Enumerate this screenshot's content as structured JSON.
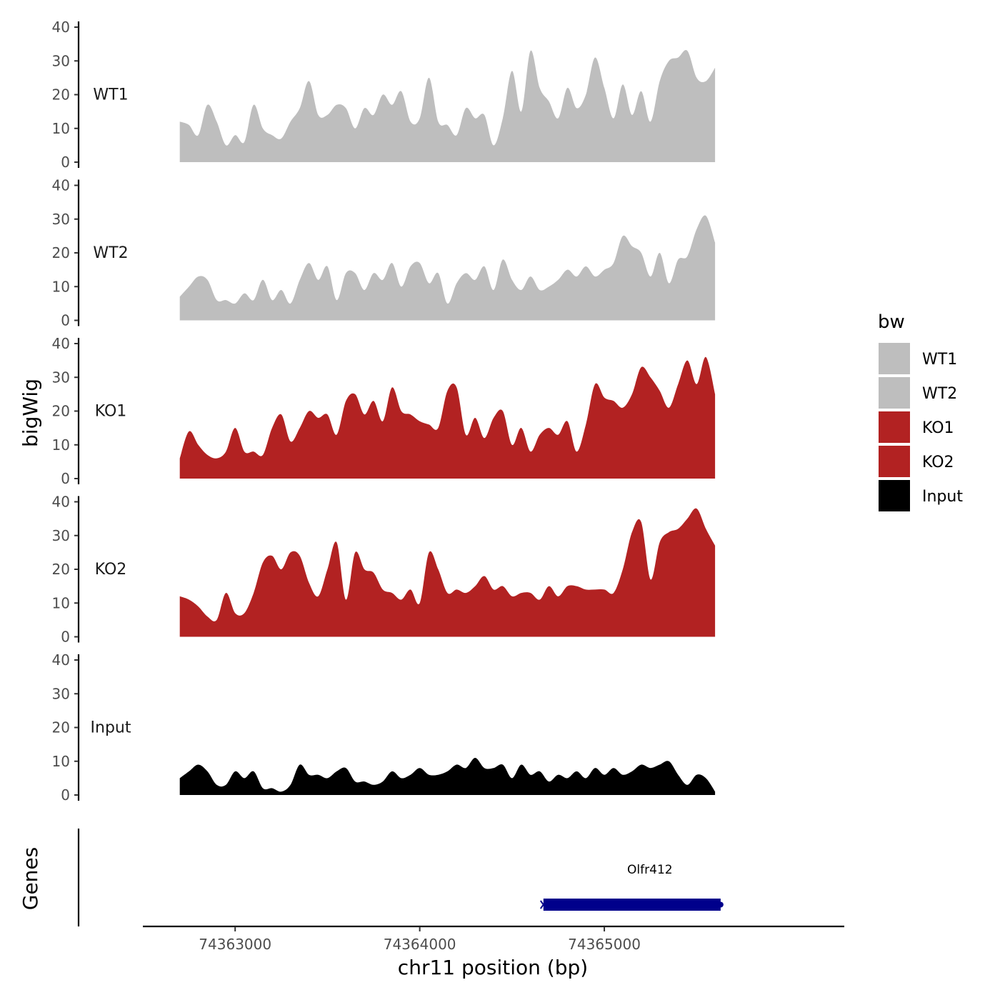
{
  "chart_data": {
    "type": "area",
    "title": "",
    "xlabel": "chr11 position (bp)",
    "ylabel": "bigWig",
    "xlim": [
      74362500,
      74366300
    ],
    "ylim": [
      0,
      40
    ],
    "xticks": [
      74363000,
      74364000,
      74365000
    ],
    "xtick_labels": [
      "74363000",
      "74364000",
      "74365000"
    ],
    "yticks": [
      0,
      10,
      20,
      30,
      40
    ],
    "ytick_labels": [
      "0",
      "10",
      "20",
      "30",
      "40"
    ],
    "grid": false,
    "legend": {
      "title": "bw",
      "placement": "right",
      "entries": [
        {
          "label": "WT1",
          "color": "#bebebe"
        },
        {
          "label": "WT2",
          "color": "#bebebe"
        },
        {
          "label": "KO1",
          "color": "#b22222"
        },
        {
          "label": "KO2",
          "color": "#b22222"
        },
        {
          "label": "Input",
          "color": "#000000"
        }
      ]
    },
    "series": [
      {
        "name": "WT1",
        "color": "#bebebe",
        "x": [
          74362700,
          74362750,
          74362800,
          74362850,
          74362900,
          74362950,
          74363000,
          74363050,
          74363100,
          74363150,
          74363200,
          74363250,
          74363300,
          74363350,
          74363400,
          74363450,
          74363500,
          74363550,
          74363600,
          74363650,
          74363700,
          74363750,
          74363800,
          74363850,
          74363900,
          74363950,
          74364000,
          74364050,
          74364100,
          74364150,
          74364200,
          74364250,
          74364300,
          74364350,
          74364400,
          74364450,
          74364500,
          74364550,
          74364600,
          74364650,
          74364700,
          74364750,
          74364800,
          74364850,
          74364900,
          74364950,
          74365000,
          74365050,
          74365100,
          74365150,
          74365200,
          74365250,
          74365300,
          74365350,
          74365400,
          74365450,
          74365500,
          74365550,
          74365600
        ],
        "values": [
          12,
          11,
          8,
          17,
          12,
          5,
          8,
          6,
          17,
          10,
          8,
          7,
          12,
          16,
          24,
          14,
          14,
          17,
          16,
          10,
          16,
          14,
          20,
          17,
          21,
          12,
          13,
          25,
          12,
          11,
          8,
          16,
          13,
          14,
          5,
          13,
          27,
          15,
          33,
          22,
          18,
          13,
          22,
          16,
          20,
          31,
          22,
          13,
          23,
          14,
          21,
          12,
          24,
          30,
          31,
          33,
          25,
          24,
          28
        ]
      },
      {
        "name": "WT2",
        "color": "#bebebe",
        "x": [
          74362700,
          74362750,
          74362800,
          74362850,
          74362900,
          74362950,
          74363000,
          74363050,
          74363100,
          74363150,
          74363200,
          74363250,
          74363300,
          74363350,
          74363400,
          74363450,
          74363500,
          74363550,
          74363600,
          74363650,
          74363700,
          74363750,
          74363800,
          74363850,
          74363900,
          74363950,
          74364000,
          74364050,
          74364100,
          74364150,
          74364200,
          74364250,
          74364300,
          74364350,
          74364400,
          74364450,
          74364500,
          74364550,
          74364600,
          74364650,
          74364700,
          74364750,
          74364800,
          74364850,
          74364900,
          74364950,
          74365000,
          74365050,
          74365100,
          74365150,
          74365200,
          74365250,
          74365300,
          74365350,
          74365400,
          74365450,
          74365500,
          74365550,
          74365600
        ],
        "values": [
          7,
          10,
          13,
          12,
          6,
          6,
          5,
          8,
          6,
          12,
          6,
          9,
          5,
          12,
          17,
          12,
          16,
          6,
          14,
          14,
          9,
          14,
          12,
          17,
          10,
          16,
          17,
          11,
          14,
          5,
          11,
          14,
          12,
          16,
          9,
          18,
          12,
          9,
          13,
          9,
          10,
          12,
          15,
          13,
          16,
          13,
          15,
          17,
          25,
          22,
          20,
          13,
          20,
          11,
          18,
          19,
          27,
          31,
          23
        ]
      },
      {
        "name": "KO1",
        "color": "#b22222",
        "x": [
          74362700,
          74362750,
          74362800,
          74362850,
          74362900,
          74362950,
          74363000,
          74363050,
          74363100,
          74363150,
          74363200,
          74363250,
          74363300,
          74363350,
          74363400,
          74363450,
          74363500,
          74363550,
          74363600,
          74363650,
          74363700,
          74363750,
          74363800,
          74363850,
          74363900,
          74363950,
          74364000,
          74364050,
          74364100,
          74364150,
          74364200,
          74364250,
          74364300,
          74364350,
          74364400,
          74364450,
          74364500,
          74364550,
          74364600,
          74364650,
          74364700,
          74364750,
          74364800,
          74364850,
          74364900,
          74364950,
          74365000,
          74365050,
          74365100,
          74365150,
          74365200,
          74365250,
          74365300,
          74365350,
          74365400,
          74365450,
          74365500,
          74365550,
          74365600
        ],
        "values": [
          6,
          14,
          10,
          7,
          6,
          8,
          15,
          8,
          8,
          7,
          15,
          19,
          11,
          15,
          20,
          18,
          19,
          13,
          23,
          25,
          19,
          23,
          17,
          27,
          20,
          19,
          17,
          16,
          15,
          26,
          27,
          13,
          18,
          12,
          18,
          20,
          10,
          15,
          8,
          13,
          15,
          13,
          17,
          8,
          16,
          28,
          24,
          23,
          21,
          25,
          33,
          30,
          26,
          21,
          28,
          35,
          28,
          36,
          25
        ]
      },
      {
        "name": "KO2",
        "color": "#b22222",
        "x": [
          74362700,
          74362750,
          74362800,
          74362850,
          74362900,
          74362950,
          74363000,
          74363050,
          74363100,
          74363150,
          74363200,
          74363250,
          74363300,
          74363350,
          74363400,
          74363450,
          74363500,
          74363550,
          74363600,
          74363650,
          74363700,
          74363750,
          74363800,
          74363850,
          74363900,
          74363950,
          74364000,
          74364050,
          74364100,
          74364150,
          74364200,
          74364250,
          74364300,
          74364350,
          74364400,
          74364450,
          74364500,
          74364550,
          74364600,
          74364650,
          74364700,
          74364750,
          74364800,
          74364850,
          74364900,
          74364950,
          74365000,
          74365050,
          74365100,
          74365150,
          74365200,
          74365250,
          74365300,
          74365350,
          74365400,
          74365450,
          74365500,
          74365550,
          74365600
        ],
        "values": [
          12,
          11,
          9,
          6,
          5,
          13,
          7,
          7,
          13,
          22,
          24,
          20,
          25,
          24,
          16,
          12,
          20,
          28,
          11,
          25,
          20,
          19,
          14,
          13,
          11,
          14,
          10,
          25,
          20,
          13,
          14,
          13,
          15,
          18,
          14,
          15,
          12,
          13,
          13,
          11,
          15,
          12,
          15,
          15,
          14,
          14,
          14,
          13,
          20,
          31,
          34,
          17,
          28,
          31,
          32,
          35,
          38,
          32,
          27
        ]
      },
      {
        "name": "Input",
        "color": "#000000",
        "x": [
          74362700,
          74362750,
          74362800,
          74362850,
          74362900,
          74362950,
          74363000,
          74363050,
          74363100,
          74363150,
          74363200,
          74363250,
          74363300,
          74363350,
          74363400,
          74363450,
          74363500,
          74363550,
          74363600,
          74363650,
          74363700,
          74363750,
          74363800,
          74363850,
          74363900,
          74363950,
          74364000,
          74364050,
          74364100,
          74364150,
          74364200,
          74364250,
          74364300,
          74364350,
          74364400,
          74364450,
          74364500,
          74364550,
          74364600,
          74364650,
          74364700,
          74364750,
          74364800,
          74364850,
          74364900,
          74364950,
          74365000,
          74365050,
          74365100,
          74365150,
          74365200,
          74365250,
          74365300,
          74365350,
          74365400,
          74365450,
          74365500,
          74365550,
          74365600
        ],
        "values": [
          5,
          7,
          9,
          7,
          3,
          3,
          7,
          5,
          7,
          2,
          2,
          1,
          3,
          9,
          6,
          6,
          5,
          7,
          8,
          4,
          4,
          3,
          4,
          7,
          5,
          6,
          8,
          6,
          6,
          7,
          9,
          8,
          11,
          8,
          8,
          9,
          5,
          9,
          6,
          7,
          4,
          6,
          5,
          7,
          5,
          8,
          6,
          8,
          6,
          7,
          9,
          8,
          9,
          10,
          6,
          3,
          6,
          5,
          1
        ]
      }
    ],
    "genes_track": {
      "label": "Genes",
      "genes": [
        {
          "name": "Olfr412",
          "start": 74364670,
          "end": 74365630,
          "strand": "-",
          "color": "#00008b"
        }
      ]
    }
  }
}
